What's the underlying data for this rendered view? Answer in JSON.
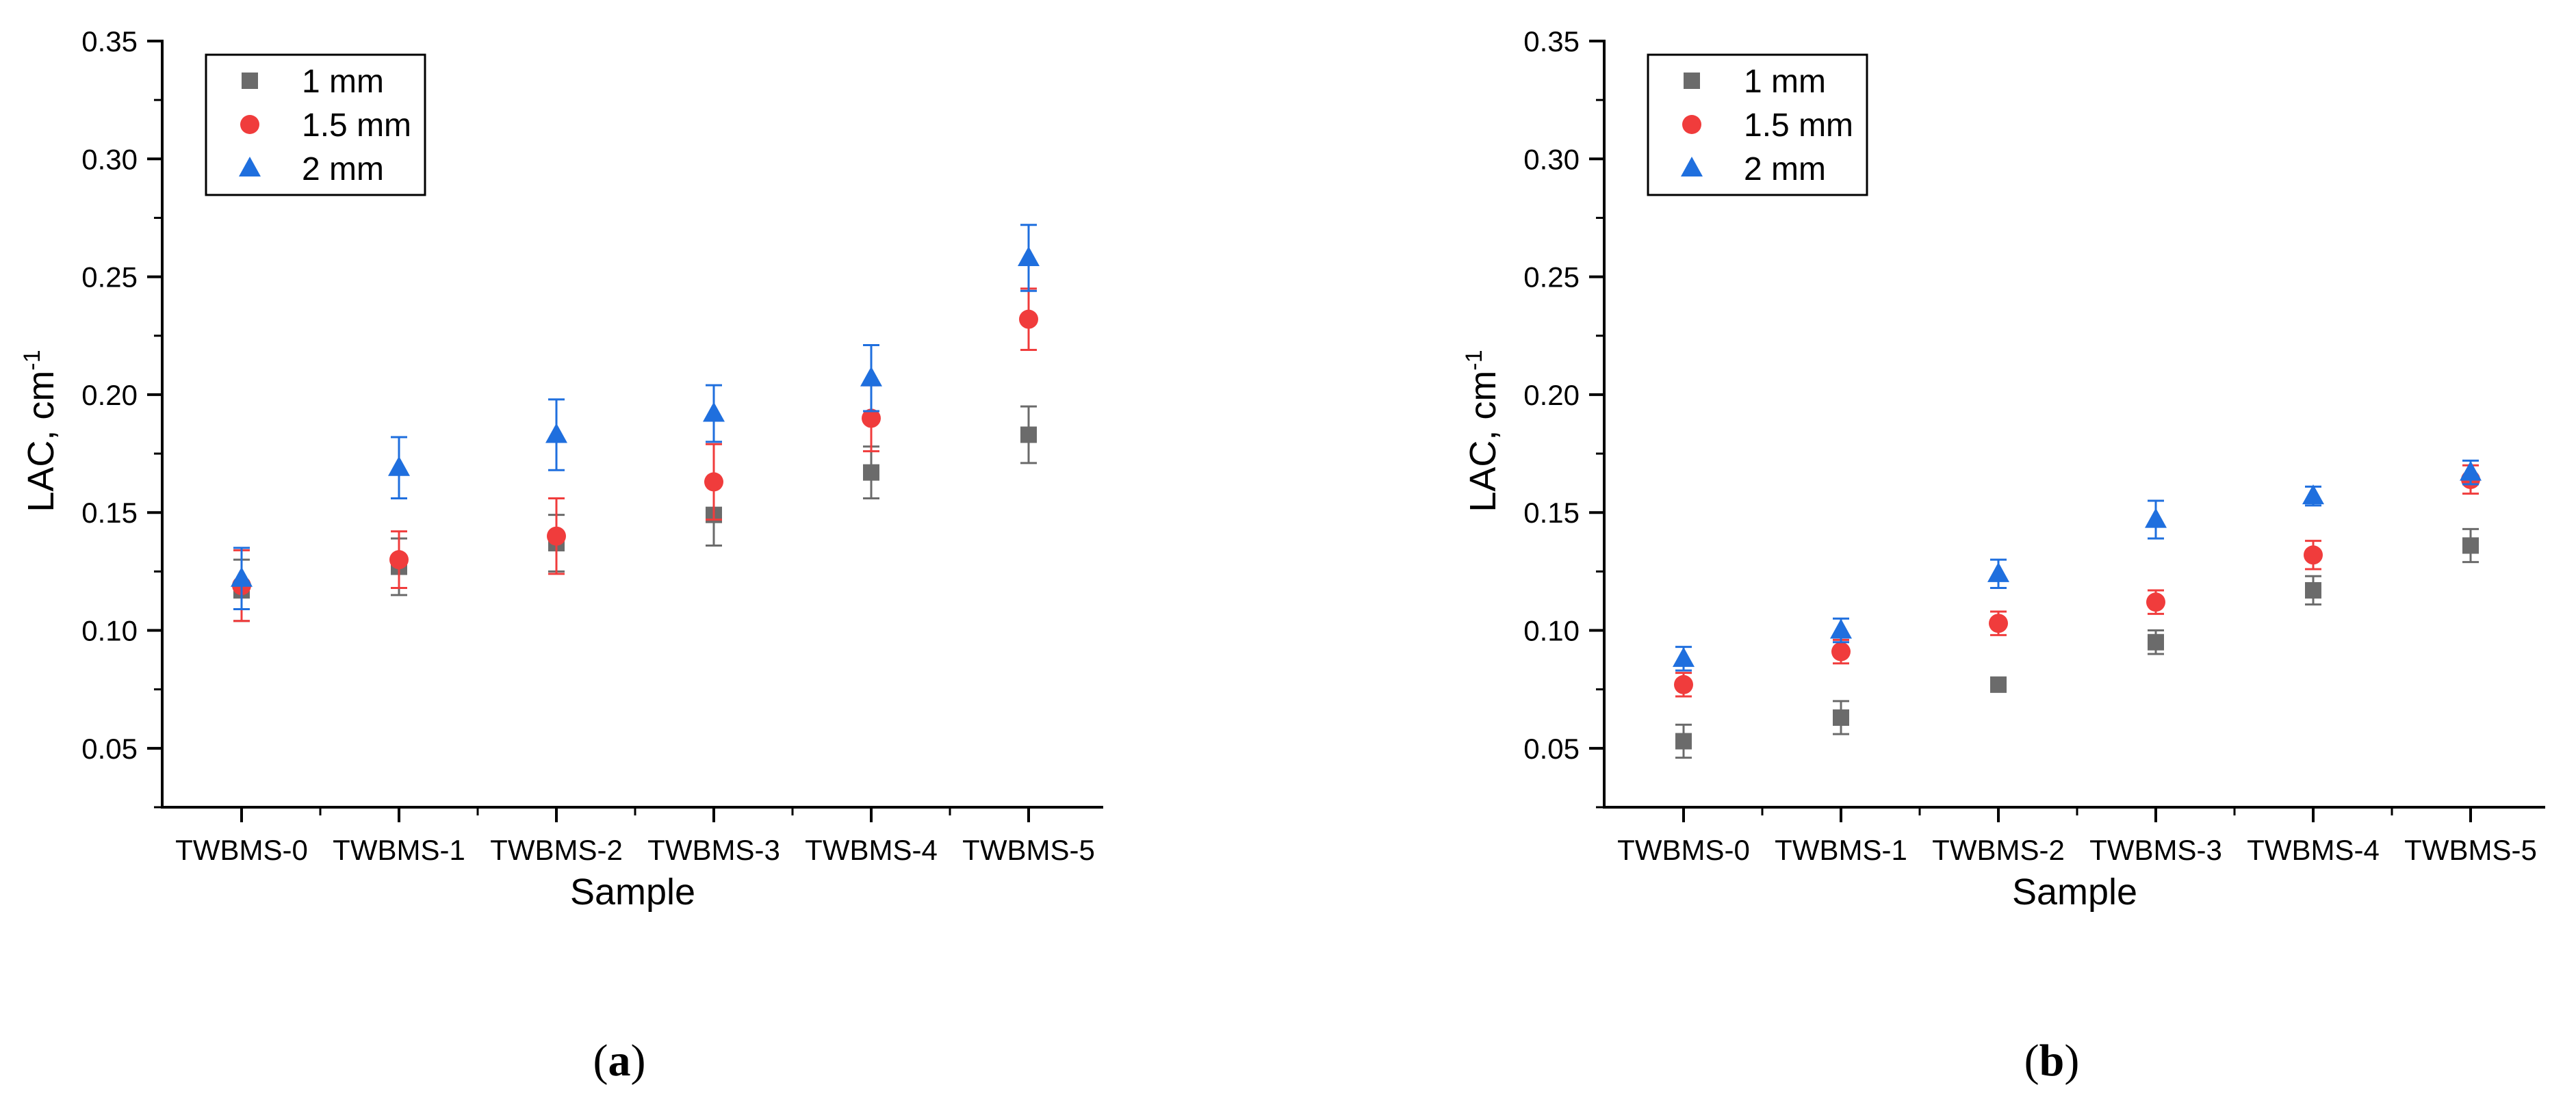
{
  "chart_data": [
    {
      "type": "scatter",
      "panel": "(a)",
      "panel_letter": "a",
      "xlabel": "Sample",
      "ylabel": "LAC, cm",
      "ylabel_sup": "-1",
      "categories": [
        "TWBMS-0",
        "TWBMS-1",
        "TWBMS-2",
        "TWBMS-3",
        "TWBMS-4",
        "TWBMS-5"
      ],
      "ylim": [
        0.025,
        0.35
      ],
      "yticks": [
        "0.05",
        "0.10",
        "0.15",
        "0.20",
        "0.25",
        "0.30",
        "0.35"
      ],
      "legend_position": "top-left",
      "series": [
        {
          "name": "1 mm",
          "marker": "square",
          "color": "#6b6b6b",
          "values": [
            0.117,
            0.127,
            0.137,
            0.149,
            0.167,
            0.183
          ],
          "errors": [
            0.013,
            0.012,
            0.012,
            0.013,
            0.011,
            0.012
          ]
        },
        {
          "name": "1.5 mm",
          "marker": "circle",
          "color": "#f03c3c",
          "values": [
            0.119,
            0.13,
            0.14,
            0.163,
            0.19,
            0.232
          ],
          "errors": [
            0.015,
            0.012,
            0.016,
            0.016,
            0.014,
            0.013
          ]
        },
        {
          "name": "2 mm",
          "marker": "triangle",
          "color": "#1f6fde",
          "values": [
            0.122,
            0.169,
            0.183,
            0.192,
            0.207,
            0.258
          ],
          "errors": [
            0.013,
            0.013,
            0.015,
            0.012,
            0.014,
            0.014
          ]
        }
      ]
    },
    {
      "type": "scatter",
      "panel": "(b)",
      "panel_letter": "b",
      "xlabel": "Sample",
      "ylabel": "LAC, cm",
      "ylabel_sup": "-1",
      "categories": [
        "TWBMS-0",
        "TWBMS-1",
        "TWBMS-2",
        "TWBMS-3",
        "TWBMS-4",
        "TWBMS-5"
      ],
      "ylim": [
        0.025,
        0.35
      ],
      "yticks": [
        "0.05",
        "0.10",
        "0.15",
        "0.20",
        "0.25",
        "0.30",
        "0.35"
      ],
      "legend_position": "top-left",
      "series": [
        {
          "name": "1 mm",
          "marker": "square",
          "color": "#6b6b6b",
          "values": [
            0.053,
            0.063,
            0.077,
            0.095,
            0.117,
            0.136
          ],
          "errors": [
            0.007,
            0.007,
            0.003,
            0.005,
            0.006,
            0.007
          ]
        },
        {
          "name": "1.5 mm",
          "marker": "circle",
          "color": "#f03c3c",
          "values": [
            0.077,
            0.091,
            0.103,
            0.112,
            0.132,
            0.164
          ],
          "errors": [
            0.005,
            0.005,
            0.005,
            0.005,
            0.006,
            0.006
          ]
        },
        {
          "name": "2 mm",
          "marker": "triangle",
          "color": "#1f6fde",
          "values": [
            0.088,
            0.1,
            0.124,
            0.147,
            0.157,
            0.167
          ],
          "errors": [
            0.005,
            0.005,
            0.006,
            0.008,
            0.004,
            0.005
          ]
        }
      ]
    }
  ]
}
